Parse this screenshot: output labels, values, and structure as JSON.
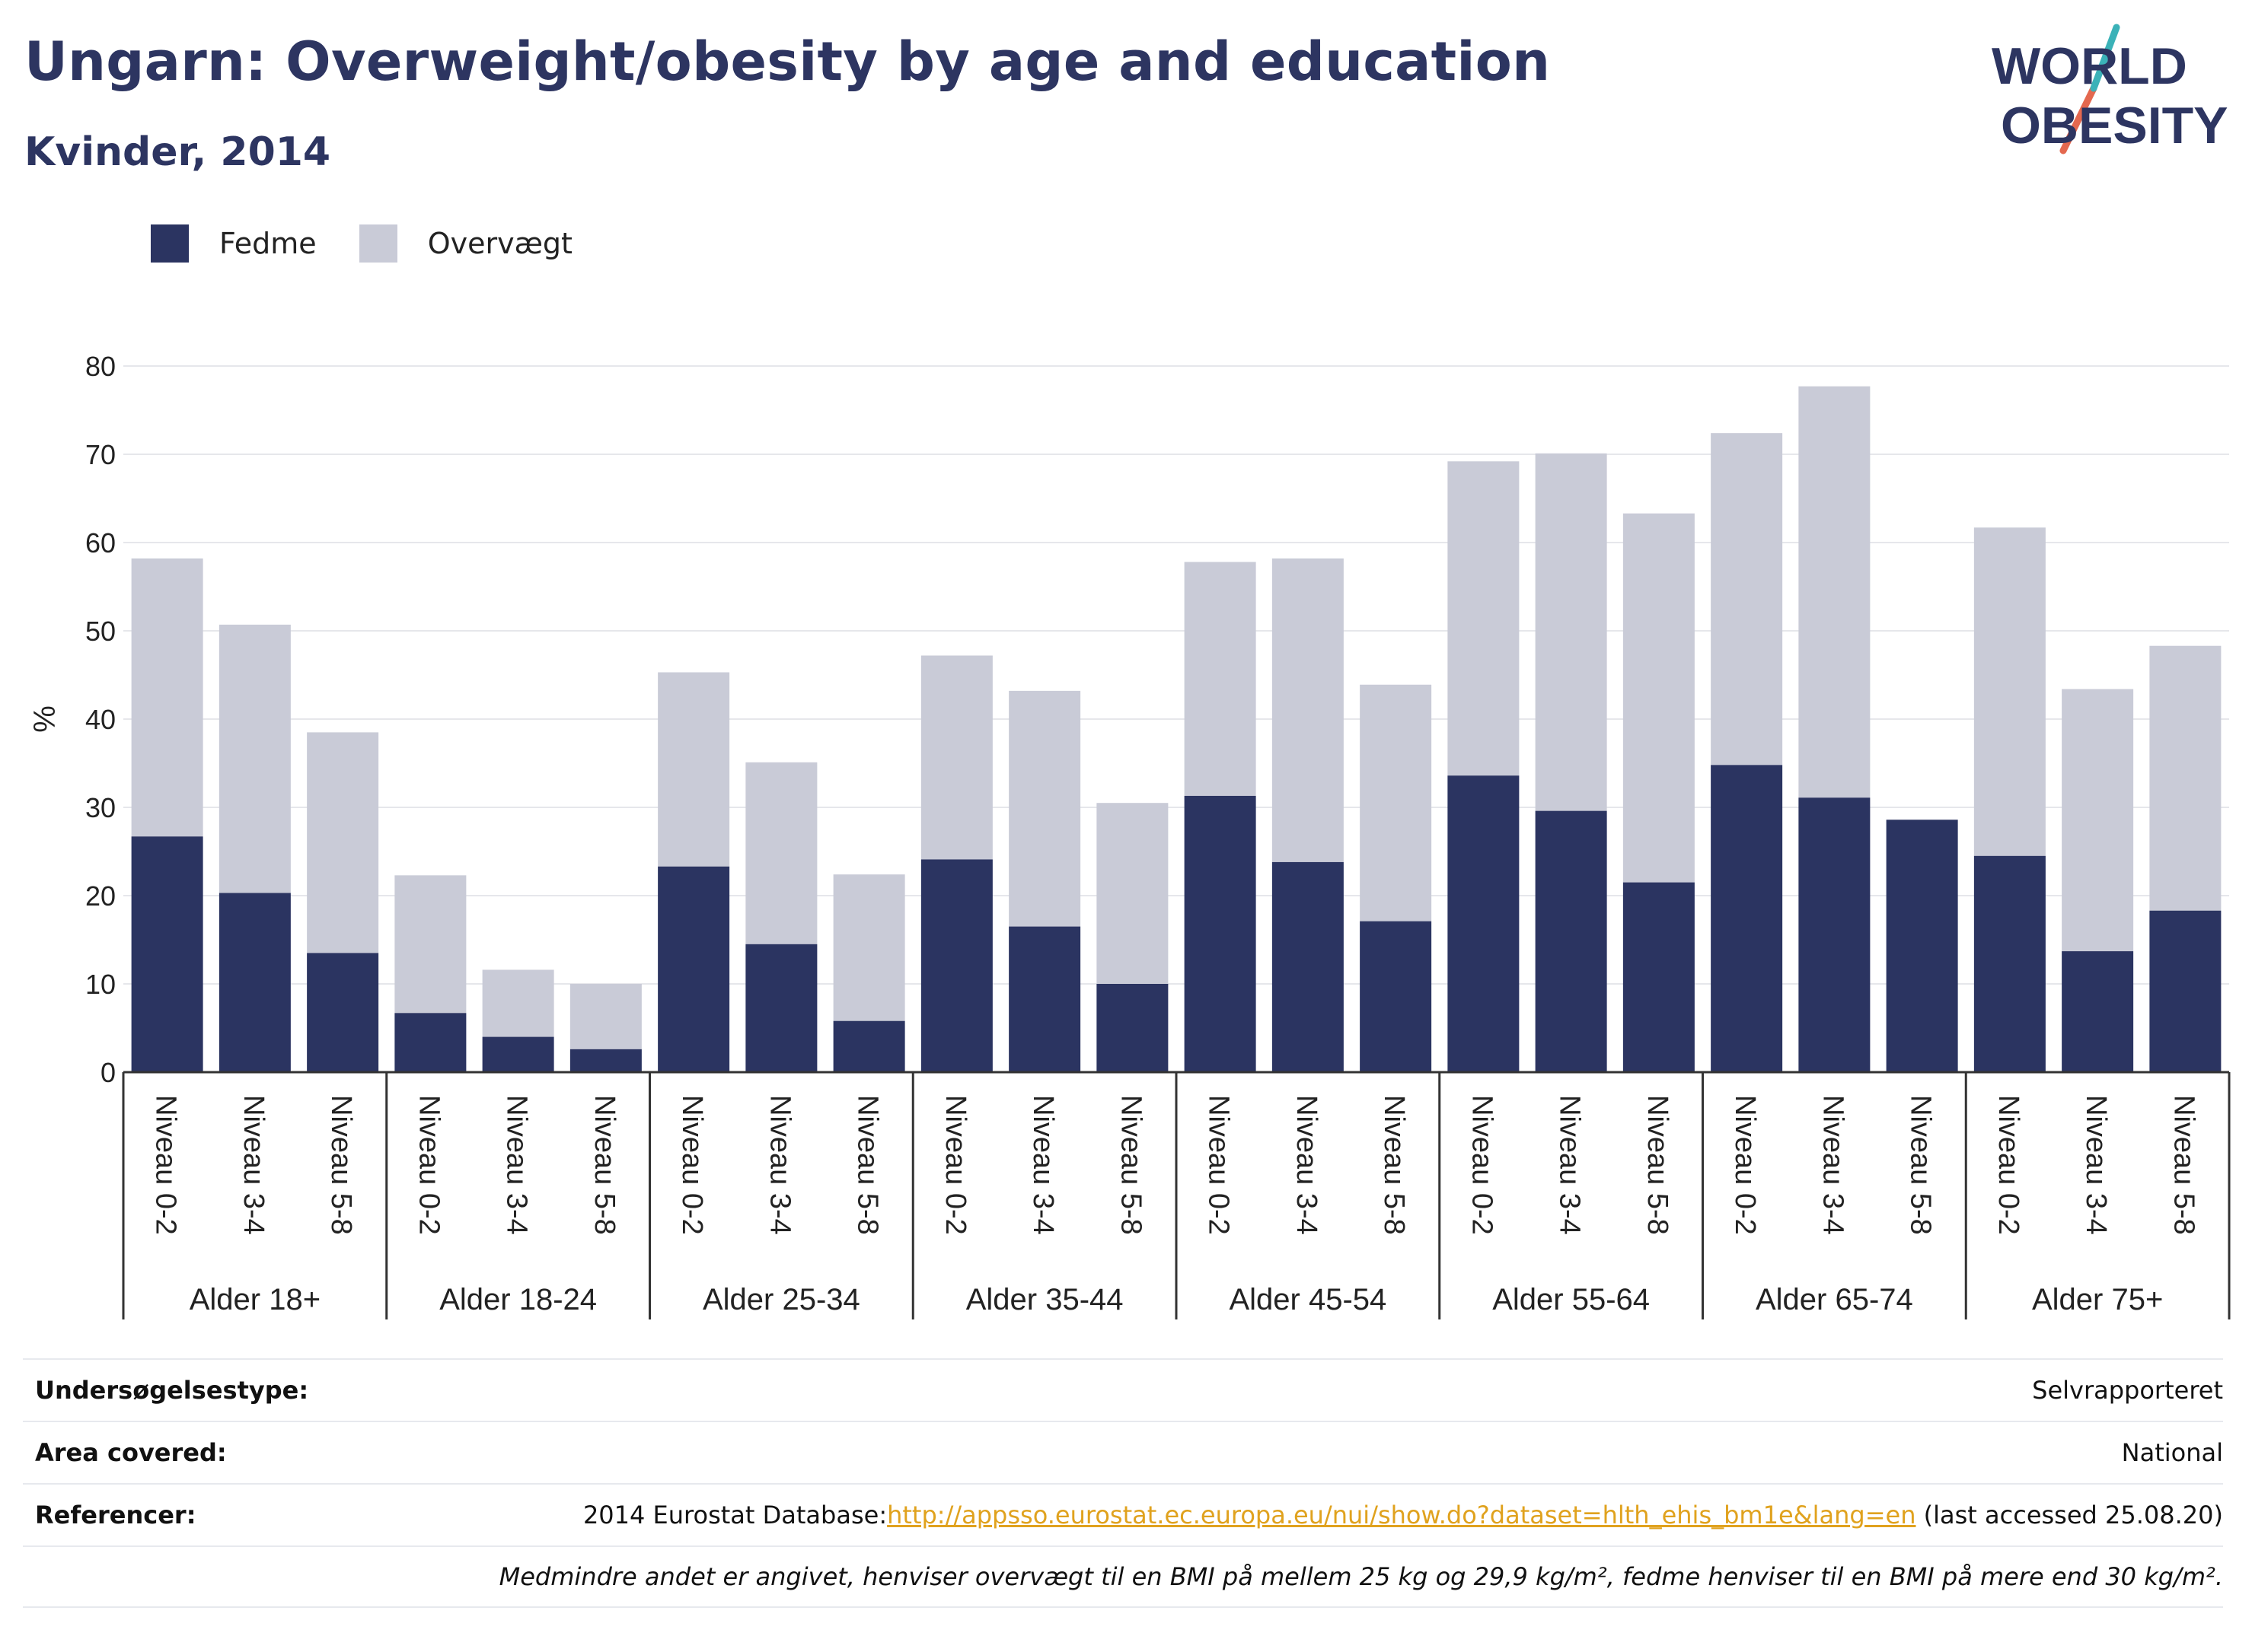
{
  "header": {
    "title": "Ungarn: Overweight/obesity by age and education",
    "subtitle": "Kvinder, 2014",
    "logo_line1": "WORLD",
    "logo_line2": "OBESITY"
  },
  "legend": {
    "items": [
      {
        "label": "Fedme",
        "color": "#2b3461"
      },
      {
        "label": "Overvægt",
        "color": "#c9cbd7"
      }
    ]
  },
  "chart_data": {
    "type": "bar",
    "stacked": true,
    "ylabel": "%",
    "ylim": [
      0,
      80
    ],
    "yticks": [
      0,
      10,
      20,
      30,
      40,
      50,
      60,
      70,
      80
    ],
    "grid": true,
    "legend_position": "top-left",
    "groups": [
      "Alder 18+",
      "Alder 18-24",
      "Alder 25-34",
      "Alder 35-44",
      "Alder 45-54",
      "Alder 55-64",
      "Alder 65-74",
      "Alder 75+"
    ],
    "subcategories": [
      "Niveau 0-2",
      "Niveau 3-4",
      "Niveau 5-8"
    ],
    "series": [
      {
        "name": "Fedme",
        "color": "#2b3461",
        "values": [
          26.7,
          20.3,
          13.5,
          6.7,
          4.0,
          2.6,
          23.3,
          14.5,
          5.8,
          24.1,
          16.5,
          10.0,
          31.3,
          23.8,
          17.1,
          33.6,
          29.6,
          21.5,
          34.8,
          31.1,
          28.6,
          24.5,
          13.7,
          18.3
        ]
      },
      {
        "name": "Overvægt",
        "color": "#c9cbd7",
        "values": [
          31.5,
          30.4,
          25.0,
          15.6,
          7.6,
          7.4,
          22.0,
          20.6,
          16.6,
          23.1,
          26.7,
          20.5,
          26.5,
          34.4,
          26.8,
          35.6,
          40.5,
          41.8,
          37.6,
          46.6,
          0,
          37.2,
          29.7,
          30.0
        ]
      }
    ]
  },
  "info": {
    "rows": [
      {
        "label": "Undersøgelsestype:",
        "value": "Selvrapporteret"
      },
      {
        "label": "Area covered:",
        "value": "National"
      }
    ],
    "references": {
      "label": "Referencer:",
      "prefix": "2014 Eurostat Database:",
      "link": "http://appsso.eurostat.ec.europa.eu/nui/show.do?dataset=hlth_ehis_bm1e&lang=en",
      "suffix": " (last accessed 25.08.20)"
    },
    "note": "Medmindre andet er angivet, henviser overvægt til en BMI på mellem 25 kg og 29,9 kg/m², fedme henviser til en BMI på mere end 30 kg/m²."
  }
}
